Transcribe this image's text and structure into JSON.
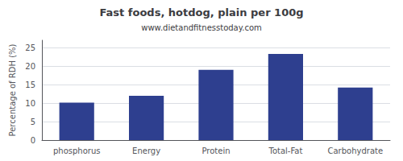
{
  "chart_data": {
    "type": "bar",
    "title": "Fast foods, hotdog, plain per 100g",
    "subtitle": "www.dietandfitnesstoday.com",
    "categories": [
      "phosphorus",
      "Energy",
      "Protein",
      "Total-Fat",
      "Carbohydrate"
    ],
    "values": [
      10.1,
      12.0,
      19.0,
      23.3,
      14.2
    ],
    "color": "#2e3f8f",
    "ylabel": "Percentage of RDH (%)",
    "ylim": [
      0,
      27
    ],
    "yticks": [
      0,
      5,
      10,
      15,
      20,
      25
    ],
    "grid": true
  }
}
